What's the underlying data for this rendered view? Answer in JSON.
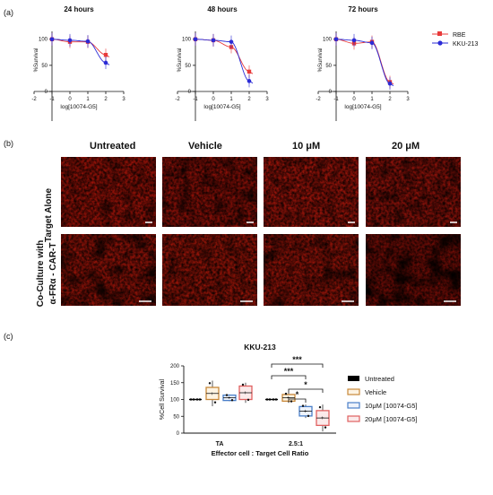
{
  "panel_labels": {
    "a": "(a)",
    "b": "(b)",
    "c": "(c)"
  },
  "legend_a": {
    "rbe": "RBE",
    "kku": "KKU-213",
    "rbe_color": "#e83a3a",
    "kku_color": "#2b2bd6"
  },
  "chart_data": [
    {
      "type": "line",
      "title": "24 hours",
      "xlabel": "log[10074-G5]",
      "ylabel": "%Survival",
      "xlim": [
        -2,
        3
      ],
      "xticks": [
        "-2",
        "-1",
        "0",
        "1",
        "2",
        "3"
      ],
      "yticks": [
        "0",
        "50",
        "100"
      ],
      "ylim": [
        0,
        115
      ],
      "x": [
        -1,
        0,
        1,
        2
      ],
      "series": [
        {
          "name": "RBE",
          "values": [
            100,
            95,
            95,
            70
          ]
        },
        {
          "name": "KKU-213",
          "values": [
            100,
            98,
            96,
            55
          ]
        }
      ]
    },
    {
      "type": "line",
      "title": "48 hours",
      "xlabel": "log[10074-G5]",
      "ylabel": "%Survival",
      "xlim": [
        -2,
        3
      ],
      "xticks": [
        "-2",
        "-1",
        "0",
        "1",
        "2",
        "3"
      ],
      "yticks": [
        "0",
        "50",
        "100"
      ],
      "ylim": [
        0,
        115
      ],
      "x": [
        -1,
        0,
        1,
        2
      ],
      "series": [
        {
          "name": "RBE",
          "values": [
            100,
            98,
            85,
            38
          ]
        },
        {
          "name": "KKU-213",
          "values": [
            100,
            98,
            95,
            20
          ]
        }
      ]
    },
    {
      "type": "line",
      "title": "72 hours",
      "xlabel": "log[10074-G5]",
      "ylabel": "%Survival",
      "xlim": [
        -2,
        3
      ],
      "xticks": [
        "-2",
        "-1",
        "0",
        "1",
        "2",
        "3"
      ],
      "yticks": [
        "0",
        "50",
        "100"
      ],
      "ylim": [
        0,
        115
      ],
      "x": [
        -1,
        0,
        1,
        2
      ],
      "series": [
        {
          "name": "RBE",
          "values": [
            100,
            92,
            95,
            18
          ]
        },
        {
          "name": "KKU-213",
          "values": [
            100,
            98,
            93,
            15
          ]
        }
      ]
    },
    {
      "type": "bar",
      "title": "KKU-213",
      "ylabel": "%Cell Survival",
      "xlabel": "Effector cell :  Target  Cell  Ratio",
      "categories": [
        "TA",
        "2.5:1"
      ],
      "yticks": [
        "0",
        "50",
        "100",
        "150",
        "200"
      ],
      "ylim": [
        0,
        200
      ],
      "series": [
        {
          "name": "Untreated",
          "values": [
            100,
            100
          ]
        },
        {
          "name": "Vehicle",
          "values": [
            118,
            105
          ]
        },
        {
          "name": "10μM [10074-G5]",
          "values": [
            105,
            65
          ]
        },
        {
          "name": "20μM [10074-G5]",
          "values": [
            120,
            45
          ]
        }
      ],
      "significance": [
        "***",
        "***",
        "*",
        "*"
      ]
    }
  ],
  "panel_b": {
    "columns": [
      "Untreated",
      "Vehicle",
      "10 μM",
      "20 μM"
    ],
    "row1": "Target Alone",
    "row2_line1": "Co-Culture with",
    "row2_line2": "α-FRα  - CAR-T"
  },
  "legend_c": {
    "untreated": "Untreated",
    "vehicle": "Vehicle",
    "m10": "10μM [10074-G5]",
    "m20": "20μM [10074-G5]",
    "untreated_color": "#000000",
    "vehicle_color": "#c8883a",
    "m10_color": "#4a7fc9",
    "m20_color": "#e06060"
  }
}
